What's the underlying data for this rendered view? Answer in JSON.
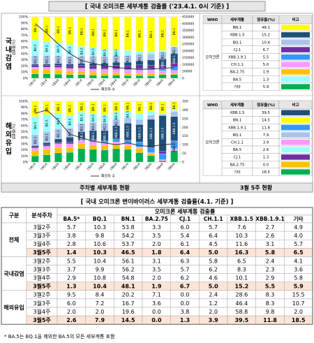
{
  "header": {
    "title": "[ 국내 오미크론 세부계통 검출률 ('23.4.1. 0시 기준) ]"
  },
  "panels": [
    "국내감염",
    "해외유입"
  ],
  "captions": [
    "주차별 세부계통 현황",
    "3월 5주 현황"
  ],
  "chart_data": [
    {
      "type": "bar",
      "stacked": true,
      "y_label": "검출률(%)",
      "categories": [
        "1월1주",
        "1월2주",
        "1월3주",
        "1월4주",
        "2월1주",
        "2월2주",
        "2월3주",
        "2월4주",
        "3월1주",
        "3월2주",
        "3월3주",
        "3월4주",
        "3월5주"
      ],
      "ylim": [
        0,
        100
      ],
      "yticks": [
        {
          "value": 0,
          "label": "0%"
        },
        {
          "value": 10,
          "label": "10%"
        },
        {
          "value": 20,
          "label": "20%"
        },
        {
          "value": 30,
          "label": "30%"
        },
        {
          "value": 40,
          "label": "40%"
        },
        {
          "value": 50,
          "label": "50%"
        },
        {
          "value": 60,
          "label": "60%"
        },
        {
          "value": 70,
          "label": "70%"
        },
        {
          "value": 80,
          "label": "80%"
        },
        {
          "value": 90,
          "label": "90%"
        },
        {
          "value": 100,
          "label": "100%"
        }
      ],
      "y2lim": [
        0,
        450000
      ],
      "y2ticks": [
        0,
        50000,
        100000,
        150000,
        200000,
        250000,
        300000,
        350000,
        400000,
        450000
      ],
      "series": [
        {
          "color": "#00b050",
          "values": [
            7,
            7,
            6.5,
            6,
            6,
            5,
            4.5,
            5,
            4,
            4.1,
            3.6,
            5.8,
            5.9
          ]
        },
        {
          "color": "#ffc000",
          "values": [
            8,
            7.5,
            7,
            6,
            5.5,
            5,
            4.5,
            4,
            3.5,
            3.1,
            3.5,
            2.0,
            1.9
          ]
        },
        {
          "color": "#ff99ff",
          "values": [
            3,
            3.5,
            4,
            4,
            4.5,
            4.5,
            5,
            5,
            5.5,
            5.8,
            6.2,
            4.6,
            5.0
          ]
        },
        {
          "color": "#3399ff",
          "values": [
            0,
            0,
            0,
            0,
            0.5,
            0.5,
            1,
            1,
            1.5,
            2.4,
            2.3,
            2.9,
            5.5
          ]
        },
        {
          "color": "#7030a0",
          "values": [
            3,
            3,
            4,
            4,
            4.5,
            5,
            5.5,
            6,
            6,
            6.3,
            5.7,
            6.2,
            6.7
          ]
        },
        {
          "name": "XBB.1.5",
          "color": "#1f4e79",
          "values": [
            2,
            2,
            2.5,
            3,
            3,
            4,
            4,
            5,
            5.5,
            6.5,
            8.3,
            10.1,
            15.2
          ]
        },
        {
          "name": "BQ.1",
          "color": "#a9c4eb",
          "values": [
            14,
            14,
            13,
            13,
            12,
            12,
            11,
            11,
            11,
            10.4,
            9.9,
            10.8,
            10.4
          ]
        },
        {
          "name": "BA.5",
          "color": "#99ffff",
          "values": [
            25,
            23,
            21,
            19,
            16,
            14,
            12,
            10,
            8,
            5.5,
            3.7,
            2.9,
            1.3
          ]
        },
        {
          "name": "BN.1",
          "color": "#ffff00",
          "values": [
            38,
            40,
            42,
            45,
            48,
            50,
            52,
            53,
            55,
            56.1,
            56.2,
            54.8,
            48.1
          ]
        },
        {
          "name": "확진자 수",
          "type": "line",
          "axis": "y2",
          "color": "#333333",
          "values": [
            400000,
            330000,
            250000,
            180000,
            130000,
            110000,
            90000,
            80000,
            70000,
            65000,
            68000,
            72000,
            78000
          ]
        }
      ]
    },
    {
      "type": "bar",
      "stacked": true,
      "y_label": "검출률(%)",
      "categories": [
        "1월1주",
        "1월2주",
        "1월3주",
        "1월4주",
        "2월1주",
        "2월2주",
        "2월3주",
        "2월4주",
        "3월1주",
        "3월2주",
        "3월3주",
        "3월4주",
        "3월5주"
      ],
      "ylim": [
        0,
        100
      ],
      "yticks": [
        {
          "value": 0,
          "label": "0%"
        },
        {
          "value": 10,
          "label": "10%"
        },
        {
          "value": 20,
          "label": "20%"
        },
        {
          "value": 30,
          "label": "30%"
        },
        {
          "value": 40,
          "label": "40%"
        },
        {
          "value": 50,
          "label": "50%"
        },
        {
          "value": 60,
          "label": "60%"
        },
        {
          "value": 70,
          "label": "70%"
        },
        {
          "value": 80,
          "label": "80%"
        },
        {
          "value": 90,
          "label": "90%"
        },
        {
          "value": 100,
          "label": "100%"
        }
      ],
      "y2lim": [
        0,
        350
      ],
      "y2ticks": [
        0,
        50,
        100,
        150,
        200,
        250,
        300,
        350
      ],
      "series": [
        {
          "color": "#00b050",
          "values": [
            10,
            12,
            15,
            16,
            22,
            21,
            20,
            22,
            21,
            15.5,
            10.7,
            2.0,
            18.5
          ]
        },
        {
          "color": "#ffc000",
          "values": [
            9,
            9,
            9,
            8,
            8,
            7,
            7,
            7,
            6,
            7.1,
            3.6,
            0.0,
            0.0
          ]
        },
        {
          "color": "#ff99ff",
          "values": [
            4,
            5,
            6,
            6,
            5,
            5,
            4,
            4,
            3,
            2.4,
            1.2,
            2.0,
            3.9
          ]
        },
        {
          "name": "XBB.1.9.1",
          "color": "#3399ff",
          "values": [
            0,
            0,
            0,
            0,
            1,
            2,
            3,
            4,
            5,
            8.3,
            8.3,
            9.8,
            11.8
          ]
        },
        {
          "color": "#7030a0",
          "values": [
            2,
            2,
            2,
            3,
            2,
            2,
            1,
            1,
            1,
            0.0,
            0.0,
            3.8,
            1.3
          ]
        },
        {
          "name": "XBB.1.5",
          "color": "#1f4e79",
          "values": [
            2,
            4,
            6,
            8,
            12,
            15,
            17,
            22,
            28,
            28.6,
            46.4,
            58.8,
            39.5
          ]
        },
        {
          "name": "BQ.1",
          "color": "#a9c4eb",
          "values": [
            18,
            18,
            17,
            15,
            14,
            13,
            12,
            10,
            9,
            8.4,
            7.2,
            2.0,
            7.9
          ]
        },
        {
          "name": "BA.5",
          "color": "#99ffff",
          "values": [
            30,
            28,
            25,
            20,
            18,
            15,
            14,
            12,
            11,
            9.5,
            6.0,
            2.0,
            2.6
          ]
        },
        {
          "name": "BN.1",
          "color": "#ffff00",
          "values": [
            25,
            22,
            20,
            24,
            18,
            20,
            22,
            18,
            16,
            20.2,
            16.7,
            19.6,
            14.5
          ]
        },
        {
          "name": "확진자 수",
          "type": "line",
          "axis": "y2",
          "color": "#333333",
          "values": [
            280,
            300,
            240,
            160,
            140,
            120,
            110,
            100,
            110,
            95,
            90,
            100,
            105
          ]
        }
      ]
    }
  ],
  "side_tables": [
    {
      "headers": [
        "WHO",
        "세부계통",
        "점유율(%)",
        "비고"
      ],
      "who": "오미크론",
      "rows": [
        {
          "name": "BN.1",
          "share": "48.1",
          "color": "#ffff00"
        },
        {
          "name": "XBB.1.5",
          "share": "15.2",
          "color": "#1f4e79"
        },
        {
          "name": "BQ.1",
          "share": "10.4",
          "color": "#a9c4eb"
        },
        {
          "name": "CJ.1",
          "share": "6.7",
          "color": "#7030a0"
        },
        {
          "name": "XBB.1.9.1",
          "share": "5.5",
          "color": "#3399ff"
        },
        {
          "name": "CH.1.1",
          "share": "5.0",
          "color": "#ff99ff"
        },
        {
          "name": "BA.2.75",
          "share": "1.9",
          "color": "#ffc000"
        },
        {
          "name": "BA.5",
          "share": "1.3",
          "color": "#99ffff"
        },
        {
          "name": "기타",
          "share": "5.9",
          "color": "#00b050"
        }
      ]
    },
    {
      "headers": [
        "WHO",
        "세부계통",
        "점유율(%)",
        "비고"
      ],
      "who": "오미크론",
      "rows": [
        {
          "name": "XBB.1.5",
          "share": "39.5",
          "color": "#1f4e79"
        },
        {
          "name": "BN.1",
          "share": "14.5",
          "color": "#ffff00"
        },
        {
          "name": "XBB.1.9.1",
          "share": "11.8",
          "color": "#3399ff"
        },
        {
          "name": "BQ.1",
          "share": "7.9",
          "color": "#a9c4eb"
        },
        {
          "name": "CH.1.1",
          "share": "3.9",
          "color": "#ff99ff"
        },
        {
          "name": "BA.5",
          "share": "2.6",
          "color": "#99ffff"
        },
        {
          "name": "CJ.1",
          "share": "1.3",
          "color": "#7030a0"
        },
        {
          "name": "BA.2.75",
          "share": "0.0",
          "color": "#ffc000"
        },
        {
          "name": "기타",
          "share": "18.5",
          "color": "#00b050"
        }
      ]
    }
  ],
  "table": {
    "title": "[ 국내 오미크론 변이바이러스 세부계통 검출률(4.1. 기준) ]",
    "col_headers": [
      "구분",
      "분석주차"
    ],
    "group_header": "오미크론 세부계통 검출률",
    "variants": [
      "BA.5*",
      "BQ.1",
      "BN.1",
      "BA.2.75",
      "CJ.1",
      "CH.1.1",
      "XBB.1.5",
      "XBB.1.9.1",
      "기타"
    ],
    "groups": [
      {
        "name": "전체",
        "rows": [
          {
            "week": "3월2주",
            "values": [
              "5.7",
              "10.3",
              "53.8",
              "3.3",
              "6.0",
              "5.7",
              "7.6",
              "2.7",
              "4.9"
            ]
          },
          {
            "week": "3월3주",
            "values": [
              "3.8",
              "9.8",
              "54.2",
              "3.5",
              "5.4",
              "6.4",
              "10.3",
              "2.6",
              "4.0"
            ]
          },
          {
            "week": "3월4주",
            "values": [
              "2.8",
              "10.6",
              "53.7",
              "2.0",
              "6.1",
              "4.5",
              "11.6",
              "3.1",
              "5.7"
            ]
          },
          {
            "week": "3월5주",
            "values": [
              "1.4",
              "10.3",
              "46.5",
              "1.8",
              "6.4",
              "5.0",
              "16.3",
              "5.8",
              "6.5"
            ]
          }
        ]
      },
      {
        "name": "국내감염",
        "rows": [
          {
            "week": "3월2주",
            "values": [
              "5.5",
              "10.4",
              "56.1",
              "3.1",
              "6.3",
              "5.8",
              "6.5",
              "2.4",
              "4.1"
            ]
          },
          {
            "week": "3월3주",
            "values": [
              "3.7",
              "9.9",
              "56.2",
              "3.5",
              "5.7",
              "6.2",
              "8.3",
              "2.3",
              "3.6"
            ]
          },
          {
            "week": "3월4주",
            "values": [
              "2.9",
              "10.8",
              "54.8",
              "2.0",
              "6.2",
              "4.6",
              "10.1",
              "2.9",
              "5.8"
            ]
          },
          {
            "week": "3월5주",
            "values": [
              "1.3",
              "10.4",
              "48.1",
              "1.9",
              "6.7",
              "5.0",
              "15.2",
              "5.5",
              "5.9"
            ]
          }
        ]
      },
      {
        "name": "해외유입",
        "rows": [
          {
            "week": "3월2주",
            "values": [
              "9.5",
              "8.4",
              "20.2",
              "7.1",
              "0.0",
              "2.4",
              "28.6",
              "8.3",
              "15.5"
            ]
          },
          {
            "week": "3월3주",
            "values": [
              "6.0",
              "7.2",
              "16.7",
              "3.6",
              "0.0",
              "1.2",
              "46.4",
              "8.3",
              "10.7"
            ]
          },
          {
            "week": "3월4주",
            "values": [
              "2.0",
              "2.0",
              "19.6",
              "0.0",
              "3.8",
              "2.0",
              "58.8",
              "9.8",
              "2.0"
            ]
          },
          {
            "week": "3월5주",
            "values": [
              "2.6",
              "7.9",
              "14.5",
              "0.0",
              "1.3",
              "3.9",
              "39.5",
              "11.8",
              "18.5"
            ]
          }
        ]
      }
    ]
  },
  "footnote": "* BA.5는 BQ.1을 제외한 BA.5의 모든 세부계통 포함"
}
